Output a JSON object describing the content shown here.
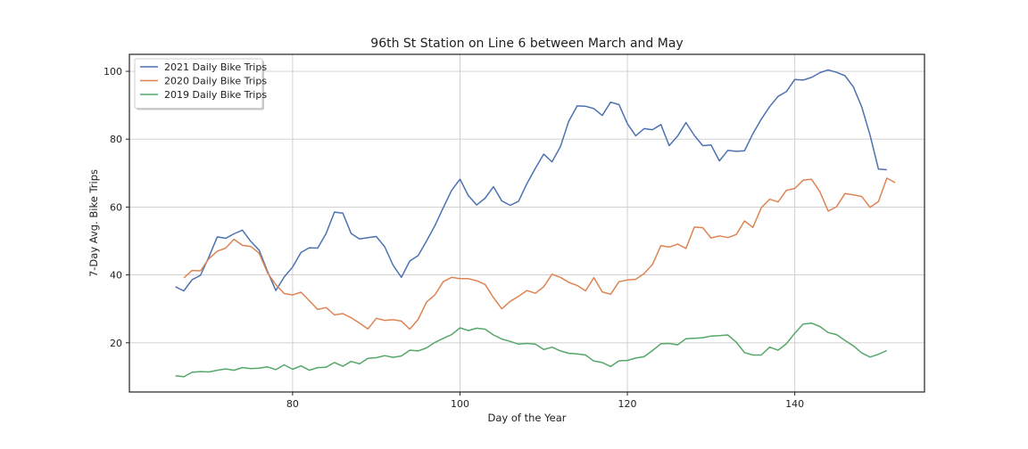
{
  "chart_data": {
    "type": "line",
    "title": "96th St Station on Line 6 between March and May",
    "xlabel": "Day of the Year",
    "ylabel": "7-Day Avg. Bike Trips",
    "xlim": [
      60.5,
      155.5
    ],
    "ylim": [
      5.5,
      105
    ],
    "xticks": [
      80,
      100,
      120,
      140
    ],
    "yticks": [
      20,
      40,
      60,
      80,
      100
    ],
    "grid": true,
    "legend_position": "top-left",
    "series": [
      {
        "name": "2021 Daily Bike Trips",
        "color": "#4c72b0",
        "x_start": 66,
        "values": [
          36.5,
          35.3,
          38.6,
          39.9,
          45.3,
          51.2,
          50.8,
          52.1,
          53.2,
          49.9,
          47.3,
          41.0,
          35.4,
          39.4,
          42.3,
          46.6,
          48.0,
          47.9,
          52.2,
          58.5,
          58.2,
          52.2,
          50.6,
          51.0,
          51.3,
          48.3,
          42.9,
          39.3,
          44.1,
          45.7,
          50.0,
          54.5,
          59.8,
          64.9,
          68.2,
          63.4,
          60.6,
          62.6,
          66.0,
          61.8,
          60.5,
          61.7,
          66.9,
          71.4,
          75.6,
          73.3,
          77.8,
          85.3,
          89.8,
          89.7,
          89.0,
          87.0,
          90.9,
          90.2,
          84.6,
          81.0,
          83.1,
          82.8,
          84.3,
          78.1,
          80.9,
          84.9,
          81.1,
          78.1,
          78.3,
          73.6,
          76.7,
          76.4,
          76.6,
          81.6,
          85.9,
          89.6,
          92.6,
          94.0,
          97.6,
          97.4,
          98.2,
          99.6,
          100.4,
          99.7,
          98.7,
          95.4,
          89.5,
          81.2,
          71.2,
          71.0
        ]
      },
      {
        "name": "2020 Daily Bike Trips",
        "color": "#dd8452",
        "x_start": 67,
        "values": [
          39.1,
          41.3,
          41.2,
          44.8,
          47.0,
          47.9,
          50.5,
          48.7,
          48.4,
          46.4,
          40.6,
          37.1,
          34.5,
          34.1,
          34.9,
          32.4,
          29.8,
          30.4,
          28.2,
          28.6,
          27.4,
          25.8,
          24.1,
          27.2,
          26.6,
          26.8,
          26.4,
          24.0,
          26.9,
          32.0,
          34.1,
          38.0,
          39.3,
          38.9,
          38.9,
          38.3,
          37.2,
          33.3,
          30.0,
          32.2,
          33.7,
          35.4,
          34.6,
          36.5,
          40.2,
          39.3,
          37.8,
          36.9,
          35.3,
          39.2,
          35.0,
          34.3,
          38.0,
          38.5,
          38.7,
          40.4,
          43.1,
          48.6,
          48.2,
          49.1,
          47.8,
          54.1,
          53.9,
          50.9,
          51.5,
          51.0,
          51.9,
          55.9,
          54.0,
          59.8,
          62.3,
          61.5,
          64.9,
          65.5,
          67.9,
          68.2,
          64.5,
          58.8,
          60.1,
          64.0,
          63.6,
          63.1,
          59.9,
          61.6,
          68.5,
          67.2
        ]
      },
      {
        "name": "2019 Daily Bike Trips",
        "color": "#55a868",
        "x_start": 66,
        "values": [
          10.3,
          10.0,
          11.3,
          11.5,
          11.4,
          11.9,
          12.3,
          11.9,
          12.7,
          12.4,
          12.5,
          12.9,
          12.1,
          13.5,
          12.2,
          13.2,
          11.9,
          12.7,
          12.8,
          14.2,
          13.1,
          14.5,
          13.8,
          15.4,
          15.6,
          16.2,
          15.7,
          16.1,
          17.8,
          17.6,
          18.5,
          20.1,
          21.3,
          22.4,
          24.4,
          23.6,
          24.3,
          24.0,
          22.3,
          21.1,
          20.4,
          19.6,
          19.8,
          19.6,
          18.0,
          18.7,
          17.6,
          16.9,
          16.7,
          16.4,
          14.6,
          14.2,
          13.0,
          14.7,
          14.8,
          15.5,
          15.9,
          17.7,
          19.7,
          19.8,
          19.4,
          21.2,
          21.3,
          21.5,
          22.0,
          22.1,
          22.3,
          20.2,
          17.1,
          16.4,
          16.4,
          18.7,
          17.8,
          19.7,
          22.8,
          25.5,
          25.8,
          24.8,
          23.0,
          22.4,
          20.7,
          19.1,
          17.0,
          15.8,
          16.6,
          17.7
        ]
      }
    ]
  }
}
